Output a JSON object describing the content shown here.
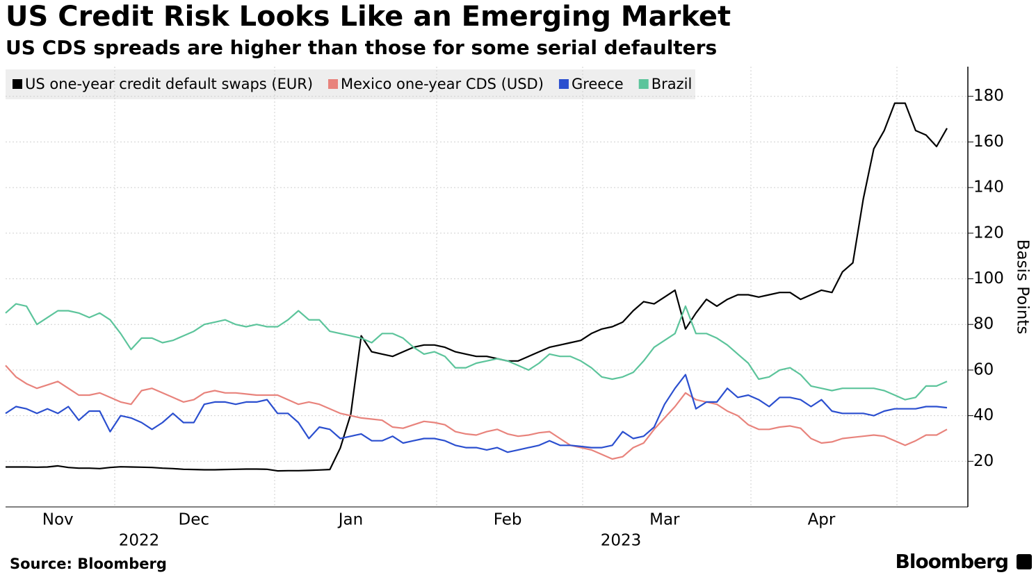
{
  "chart_data": {
    "type": "line",
    "title": "US Credit Risk Looks Like an Emerging Market",
    "subtitle": "US CDS spreads are higher than those for some serial defaulters",
    "y_label": "Basis Points",
    "source": "Source: Bloomberg",
    "brand": "Bloomberg",
    "year_labels": [
      "2022",
      "2023"
    ],
    "categories": [
      null,
      null,
      null,
      null,
      null,
      "Nov",
      null,
      null,
      null,
      null,
      null,
      null,
      null,
      null,
      null,
      null,
      null,
      null,
      "Dec",
      null,
      null,
      null,
      null,
      null,
      null,
      null,
      null,
      null,
      null,
      null,
      null,
      null,
      null,
      "Jan",
      null,
      null,
      null,
      null,
      null,
      null,
      null,
      null,
      null,
      null,
      null,
      null,
      null,
      null,
      "Feb",
      null,
      null,
      null,
      null,
      null,
      null,
      null,
      null,
      null,
      null,
      null,
      null,
      null,
      null,
      "Mar",
      null,
      null,
      null,
      null,
      null,
      null,
      null,
      null,
      null,
      null,
      null,
      null,
      null,
      null,
      "Apr",
      null,
      null,
      null,
      null,
      null,
      null,
      null,
      null,
      null,
      null,
      null,
      null
    ],
    "ylim": [
      0,
      193
    ],
    "yticks": [
      20,
      40,
      60,
      80,
      100,
      120,
      140,
      160,
      180
    ],
    "grid": true,
    "series": [
      {
        "name": "US one-year credit default swaps (EUR)",
        "color": "#000000",
        "values": [
          17.5,
          17.5,
          17.5,
          17.4,
          17.5,
          18,
          17.3,
          17,
          17,
          16.8,
          17.3,
          17.6,
          17.5,
          17.4,
          17.3,
          17,
          16.8,
          16.5,
          16.4,
          16.3,
          16.3,
          16.4,
          16.5,
          16.6,
          16.6,
          16.5,
          15.8,
          15.9,
          15.9,
          16,
          16.2,
          16.4,
          25.8,
          40.7,
          75,
          68,
          67,
          66,
          68,
          70,
          71,
          71,
          70,
          68,
          67,
          66,
          66,
          65,
          64,
          64,
          66,
          68,
          70,
          71,
          72,
          73,
          76,
          78,
          79,
          81,
          86,
          90,
          89,
          92,
          95,
          78,
          85,
          91,
          88,
          91,
          93,
          93,
          92,
          93,
          94,
          94,
          91,
          93,
          95,
          94,
          103,
          107,
          135,
          157,
          165,
          177,
          177,
          165,
          163,
          158,
          166
        ]
      },
      {
        "name": "Mexico one-year CDS (USD)",
        "color": "#e8837c",
        "values": [
          62,
          57,
          54,
          52,
          53.5,
          55,
          52,
          49,
          49,
          50,
          48,
          46,
          45,
          51,
          52,
          50,
          48,
          46,
          47,
          50,
          51,
          50,
          50,
          49.5,
          49,
          49,
          49,
          47,
          45,
          46,
          45,
          43,
          41,
          40,
          39,
          38.5,
          38,
          35,
          34.5,
          36,
          37.5,
          37,
          36,
          33,
          32,
          31.5,
          33,
          34,
          32,
          31,
          31.5,
          32.5,
          33,
          30,
          27,
          26,
          25,
          23,
          21,
          22,
          26,
          28,
          34,
          39,
          44,
          50,
          47,
          46,
          45,
          42,
          40,
          36,
          34,
          34,
          35,
          35.5,
          34.5,
          30,
          28,
          28.5,
          30,
          30.5,
          31,
          31.5,
          31,
          29,
          27,
          29,
          31.5,
          31.5,
          34
        ]
      },
      {
        "name": "Greece",
        "color": "#2b4fcf",
        "values": [
          41,
          44,
          43,
          41,
          43,
          41,
          44,
          38,
          42,
          42,
          33,
          40,
          39,
          37,
          34,
          37,
          41,
          37,
          37,
          45,
          46,
          46,
          45,
          46,
          46,
          47,
          41,
          41,
          37,
          30,
          35,
          34,
          30,
          31,
          32,
          29,
          29,
          31,
          28,
          29,
          30,
          30,
          29,
          27,
          26,
          26,
          25,
          26,
          24,
          25,
          26,
          27,
          29,
          27,
          27,
          26.5,
          26,
          26,
          27,
          33,
          30,
          31,
          35,
          45,
          52,
          58,
          43,
          46,
          46,
          52,
          48,
          49,
          47,
          44,
          48,
          48,
          47,
          44,
          47,
          42,
          41,
          41,
          41,
          40,
          42,
          43,
          43,
          43,
          44,
          44,
          43.5
        ]
      },
      {
        "name": "Brazil",
        "color": "#5cc49b",
        "values": [
          85,
          89,
          88,
          80,
          83,
          86,
          86,
          85,
          83,
          85,
          82,
          76,
          69,
          74,
          74,
          72,
          73,
          75,
          77,
          80,
          81,
          82,
          80,
          79,
          80,
          79,
          79,
          82,
          86,
          82,
          82,
          77,
          76,
          75,
          74,
          72,
          76,
          76,
          74,
          70,
          67,
          68,
          66,
          61,
          61,
          63,
          64,
          65,
          64,
          62,
          60,
          63,
          67,
          66,
          66,
          64,
          61,
          57,
          56,
          57,
          59,
          64,
          70,
          73,
          76,
          88,
          76,
          76,
          74,
          71,
          67,
          63,
          56,
          57,
          60,
          61,
          58,
          53,
          52,
          51,
          52,
          52,
          52,
          52,
          51,
          49,
          47,
          48,
          53,
          53,
          55
        ]
      }
    ]
  }
}
